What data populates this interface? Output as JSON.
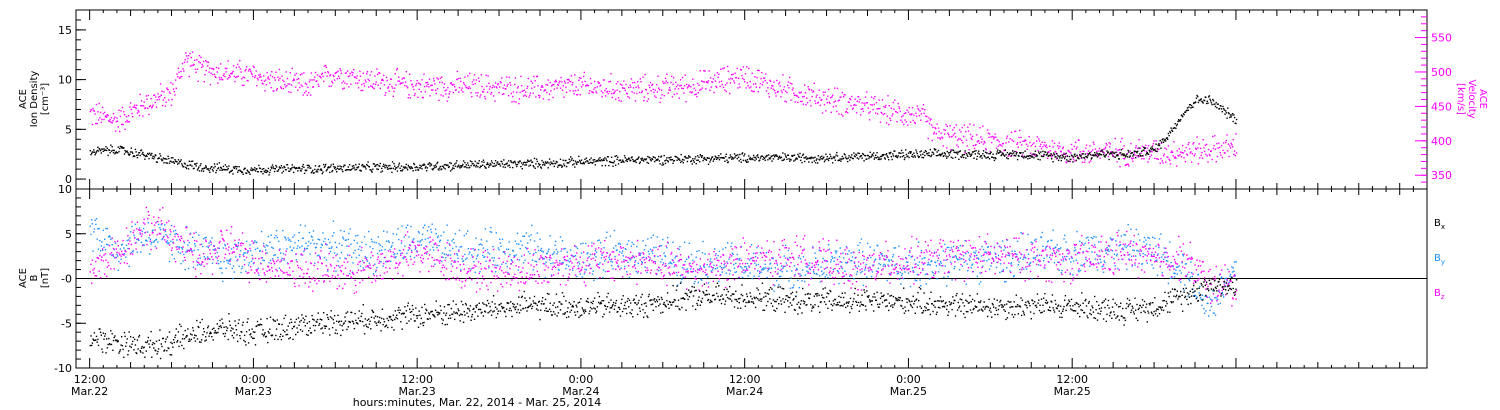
{
  "chart_data": [
    {
      "type": "scatter",
      "panel": "top",
      "left_axis": {
        "label_lines": [
          "ACE",
          "Ion Density",
          "[cm⁻³]"
        ],
        "range": [
          -1,
          17
        ],
        "ticks": [
          0,
          5,
          10,
          15
        ],
        "color": "#000000"
      },
      "right_axis": {
        "label_lines": [
          "ACE",
          "Velocity",
          "[km/s]"
        ],
        "range": [
          330,
          590
        ],
        "ticks": [
          350,
          400,
          450,
          500,
          550
        ],
        "color": "#ff00ff"
      },
      "series": [
        {
          "name": "Ion Density",
          "axis": "left",
          "color": "#000000",
          "x_hours": [
            0,
            2,
            4,
            6,
            8,
            10,
            12,
            16,
            20,
            24,
            28,
            32,
            36,
            40,
            44,
            48,
            52,
            56,
            60,
            64,
            66,
            68,
            70,
            72,
            74,
            76,
            78,
            79,
            80,
            81,
            82,
            83,
            84
          ],
          "values": [
            2.8,
            3.0,
            2.5,
            1.8,
            1.3,
            1.1,
            1.0,
            1.1,
            1.2,
            1.3,
            1.5,
            1.6,
            1.8,
            2.0,
            2.1,
            2.2,
            2.2,
            2.3,
            2.5,
            2.6,
            2.5,
            2.6,
            2.4,
            2.3,
            2.6,
            2.5,
            3.0,
            4.5,
            6.5,
            8.0,
            8.0,
            7.0,
            6.0
          ]
        },
        {
          "name": "Velocity",
          "axis": "right",
          "color": "#ff00ff",
          "x_hours": [
            0,
            2,
            4,
            6,
            7,
            8,
            10,
            12,
            14,
            16,
            18,
            20,
            24,
            28,
            32,
            36,
            40,
            44,
            48,
            50,
            52,
            54,
            56,
            58,
            60,
            61,
            62,
            64,
            66,
            68,
            70,
            72,
            74,
            76,
            78,
            80,
            82,
            84
          ],
          "values": [
            440,
            430,
            455,
            470,
            520,
            505,
            500,
            495,
            485,
            480,
            500,
            490,
            480,
            480,
            475,
            480,
            475,
            480,
            495,
            480,
            470,
            460,
            455,
            445,
            440,
            435,
            410,
            405,
            400,
            395,
            390,
            385,
            385,
            385,
            385,
            385,
            388,
            392
          ]
        }
      ]
    },
    {
      "type": "scatter",
      "panel": "bottom",
      "left_axis": {
        "label_lines": [
          "ACE",
          "B",
          "[nT]"
        ],
        "range": [
          -10,
          10
        ],
        "ticks": [
          -10,
          -5,
          0,
          5,
          10
        ],
        "tick_labels": [
          "-10",
          "-5",
          "-0",
          "5",
          "10"
        ],
        "color": "#000000"
      },
      "zero_line": 0,
      "legend": [
        {
          "label": "B",
          "sub": "x",
          "color": "#000000"
        },
        {
          "label": "B",
          "sub": "y",
          "color": "#1e90ff"
        },
        {
          "label": "B",
          "sub": "z",
          "color": "#ff00ff"
        }
      ],
      "series": [
        {
          "name": "Bx",
          "color": "#000000",
          "x_hours": [
            0,
            2,
            4,
            6,
            8,
            10,
            12,
            16,
            20,
            24,
            28,
            32,
            36,
            40,
            44,
            48,
            52,
            56,
            60,
            64,
            68,
            72,
            76,
            78,
            80,
            82,
            84
          ],
          "values": [
            -6.5,
            -7.0,
            -7.5,
            -7.0,
            -6.0,
            -5.5,
            -6.0,
            -5.0,
            -4.5,
            -4.0,
            -3.5,
            -3.0,
            -3.0,
            -3.0,
            -2.0,
            -2.0,
            -2.5,
            -2.5,
            -2.5,
            -3.0,
            -3.0,
            -3.0,
            -3.5,
            -3.0,
            -2.0,
            -0.5,
            -1.0
          ]
        },
        {
          "name": "By",
          "color": "#1e90ff",
          "x_hours": [
            0,
            2,
            4,
            6,
            8,
            10,
            12,
            16,
            20,
            24,
            28,
            32,
            36,
            40,
            44,
            48,
            52,
            56,
            60,
            64,
            68,
            72,
            76,
            78,
            80,
            82,
            84
          ],
          "values": [
            6.0,
            3.0,
            5.0,
            4.0,
            3.0,
            2.0,
            3.0,
            4.0,
            3.0,
            4.0,
            3.0,
            3.5,
            2.0,
            3.0,
            2.0,
            1.5,
            1.0,
            2.0,
            1.5,
            2.0,
            2.5,
            3.0,
            3.5,
            3.0,
            1.5,
            -3.0,
            1.0
          ]
        },
        {
          "name": "Bz",
          "color": "#ff00ff",
          "x_hours": [
            0,
            2,
            4,
            6,
            8,
            10,
            12,
            16,
            20,
            24,
            28,
            32,
            36,
            40,
            44,
            48,
            52,
            56,
            60,
            64,
            68,
            72,
            76,
            78,
            80,
            82,
            84
          ],
          "values": [
            1.0,
            3.0,
            6.0,
            5.0,
            2.0,
            4.0,
            2.0,
            1.0,
            1.0,
            3.0,
            1.0,
            1.0,
            2.0,
            2.0,
            1.0,
            2.0,
            2.5,
            1.0,
            2.0,
            2.5,
            2.5,
            2.0,
            3.0,
            2.0,
            2.5,
            -0.5,
            -1.0
          ]
        }
      ]
    }
  ],
  "x_axis": {
    "range_hours": [
      -1,
      98
    ],
    "ticks_hours": [
      0,
      12,
      24,
      36,
      48,
      60,
      72,
      84
    ],
    "tick_labels": [
      {
        "time": "12:00",
        "date": "Mar.22"
      },
      {
        "time": "0:00",
        "date": "Mar.23"
      },
      {
        "time": "12:00",
        "date": "Mar.23"
      },
      {
        "time": "0:00",
        "date": "Mar.24"
      },
      {
        "time": "12:00",
        "date": "Mar.24"
      },
      {
        "time": "0:00",
        "date": "Mar.25"
      },
      {
        "time": "12:00",
        "date": "Mar.25"
      }
    ],
    "title": "hours:minutes, Mar. 22, 2014 - Mar. 25, 2014"
  }
}
